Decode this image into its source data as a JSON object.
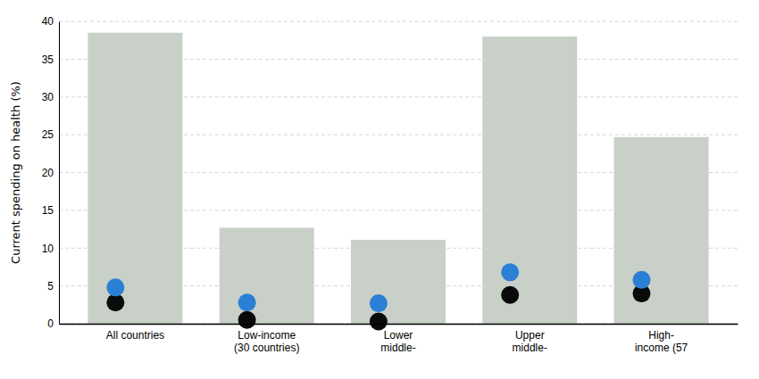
{
  "chart_data": {
    "type": "bar",
    "ylabel": "Current spending on health (%)",
    "categories": [
      "All countries",
      "Low-income\n(30 countries)",
      "Lower\nmiddle-",
      "Upper\nmiddle-",
      "High-\nincome (57"
    ],
    "series": [
      {
        "type": "bar",
        "color": "#c8d0c8",
        "values": [
          38.5,
          12.7,
          11.1,
          38.0,
          24.7
        ]
      },
      {
        "type": "scatter",
        "color": "#0a0a0a",
        "values": [
          2.8,
          0.5,
          0.3,
          3.8,
          4.0
        ]
      },
      {
        "type": "scatter",
        "color": "#2b7fd4",
        "values": [
          4.8,
          2.8,
          2.7,
          6.8,
          5.8
        ]
      }
    ],
    "ylim": [
      0,
      40
    ],
    "yticks": [
      0,
      5,
      10,
      15,
      20,
      25,
      30,
      35,
      40
    ],
    "grid": true
  }
}
